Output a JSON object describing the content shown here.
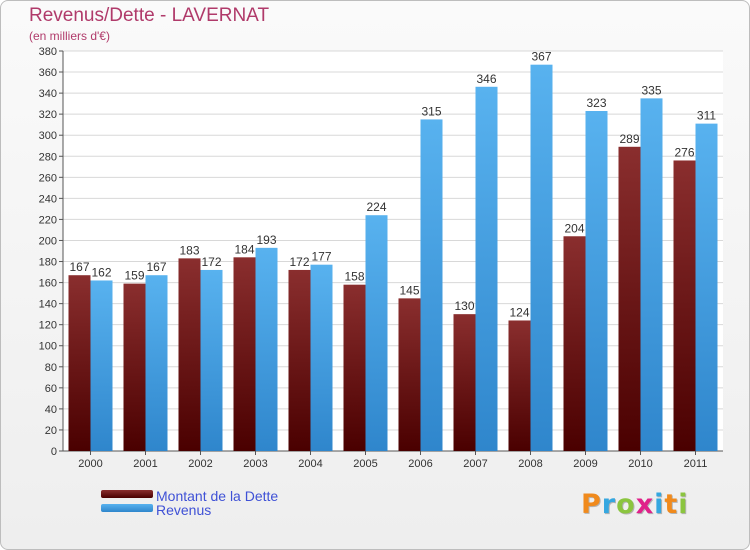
{
  "chart_data": {
    "type": "bar",
    "title": "Revenus/Dette - LAVERNAT",
    "subtitle": "(en milliers d'€)",
    "categories": [
      "2000",
      "2001",
      "2002",
      "2003",
      "2004",
      "2005",
      "2006",
      "2007",
      "2008",
      "2009",
      "2010",
      "2011"
    ],
    "series": [
      {
        "name": "Montant de la Dette",
        "color": "#6b0a0a",
        "values": [
          167,
          159,
          183,
          184,
          172,
          158,
          145,
          130,
          124,
          204,
          289,
          276
        ]
      },
      {
        "name": "Revenus",
        "color": "#4aa3df",
        "values": [
          162,
          167,
          172,
          193,
          177,
          224,
          315,
          346,
          367,
          323,
          335,
          311
        ]
      }
    ],
    "ylim": [
      0,
      380
    ],
    "ytick_step": 20,
    "grid": true,
    "legend_position": "bottom-left"
  },
  "logo": {
    "text": "Proxiti",
    "letters": [
      {
        "ch": "P",
        "color": "#f08a1c"
      },
      {
        "ch": "r",
        "color": "#35a7e0"
      },
      {
        "ch": "o",
        "color": "#8bc53f"
      },
      {
        "ch": "x",
        "color": "#e0218a"
      },
      {
        "ch": "i",
        "color": "#35a7e0"
      },
      {
        "ch": "t",
        "color": "#f08a1c"
      },
      {
        "ch": "i",
        "color": "#8bc53f"
      }
    ]
  }
}
